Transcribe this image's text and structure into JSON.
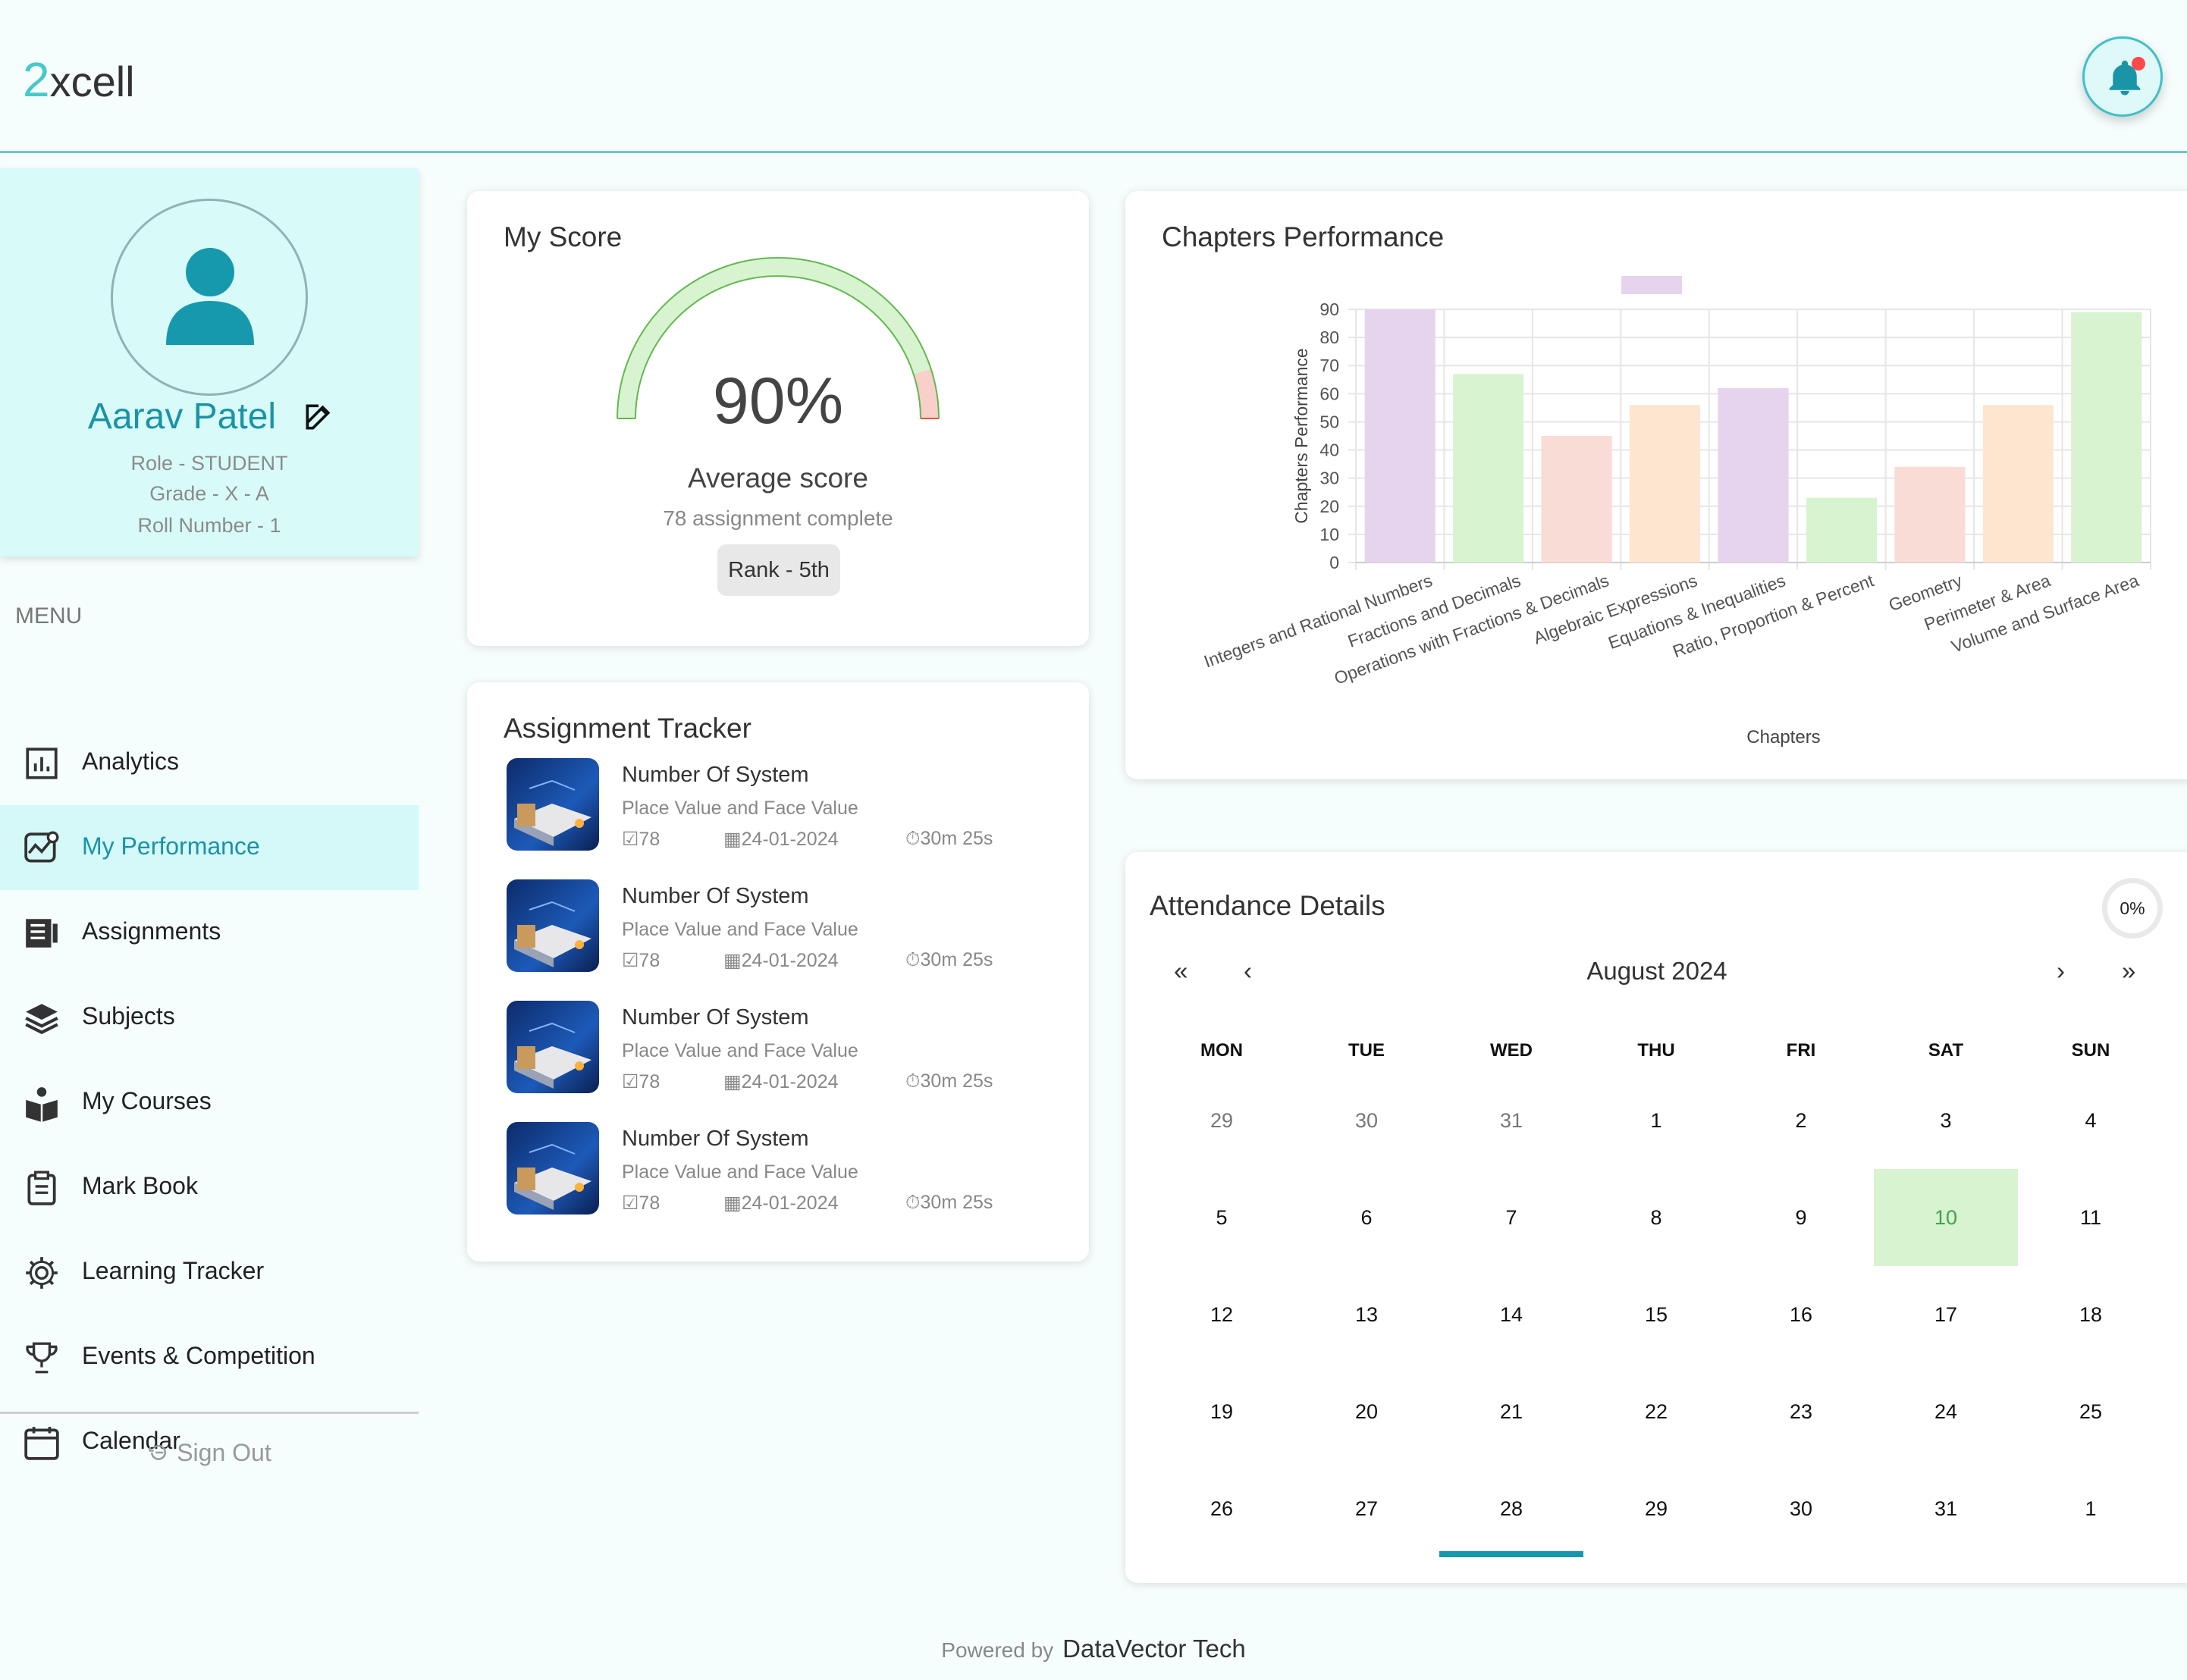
{
  "brand": {
    "logo_num": "2",
    "logo_text": "xcell"
  },
  "profile": {
    "name": "Aarav Patel",
    "role": "Role - STUDENT",
    "grade": "Grade - X - A",
    "roll": "Roll Number - 1"
  },
  "menu": {
    "label": "MENU",
    "items": [
      {
        "label": "Analytics",
        "icon": "analytics-icon"
      },
      {
        "label": "My Performance",
        "icon": "performance-icon"
      },
      {
        "label": "Assignments",
        "icon": "assignments-icon"
      },
      {
        "label": "Subjects",
        "icon": "subjects-icon"
      },
      {
        "label": "My Courses",
        "icon": "courses-icon"
      },
      {
        "label": "Mark Book",
        "icon": "clipboard-icon"
      },
      {
        "label": "Learning Tracker",
        "icon": "gear-icon"
      },
      {
        "label": "Events & Competition",
        "icon": "trophy-icon"
      },
      {
        "label": "Calendar",
        "icon": "calendar-icon"
      }
    ],
    "active_index": 1,
    "signout": "Sign Out"
  },
  "score": {
    "title": "My Score",
    "percentage": 90,
    "value_text": "90%",
    "avg_label": "Average score",
    "assignments": "78 assignment complete",
    "rank": "Rank - 5th"
  },
  "tracker": {
    "title": "Assignment Tracker",
    "items": [
      {
        "title": "Number Of System",
        "subtitle": "Place Value and Face Value",
        "count": "78",
        "date": "24-01-2024",
        "time": "30m 25s"
      },
      {
        "title": "Number Of System",
        "subtitle": "Place Value and Face Value",
        "count": "78",
        "date": "24-01-2024",
        "time": "30m 25s"
      },
      {
        "title": "Number Of System",
        "subtitle": "Place Value and Face Value",
        "count": "78",
        "date": "24-01-2024",
        "time": "30m 25s"
      },
      {
        "title": "Number Of System",
        "subtitle": "Place Value and Face Value",
        "count": "78",
        "date": "24-01-2024",
        "time": "30m 25s"
      }
    ]
  },
  "chart_data": {
    "type": "bar",
    "title": "Chapters Performance",
    "xlabel": "Chapters",
    "ylabel": "Chapters Performance",
    "ylim": [
      0,
      90
    ],
    "yticks": [
      0,
      10,
      20,
      30,
      40,
      50,
      60,
      70,
      80,
      90
    ],
    "categories": [
      "Integers and Rational Numbers",
      "Fractions and Decimals",
      "Operations with Fractions & Decimals",
      "Algebraic Expressions",
      "Equations & Inequalities",
      "Ratio, Proportion & Percent",
      "Geometry",
      "Perimeter & Area",
      "Volume and Surface Area"
    ],
    "values": [
      90,
      67,
      45,
      56,
      62,
      23,
      34,
      56,
      89
    ],
    "colors": [
      "#e6d4ef",
      "#d8f3d0",
      "#f9dcd5",
      "#fde6d0",
      "#e6d4ef",
      "#d8f3d0",
      "#f9dcd5",
      "#fde6d0",
      "#d8f3d0"
    ],
    "grid": true
  },
  "attendance": {
    "title": "Attendance Details",
    "percent": "0%",
    "month": "August 2024",
    "nav": {
      "first": "«",
      "prev": "‹",
      "next": "›",
      "last": "»"
    },
    "weekdays": [
      "MON",
      "TUE",
      "WED",
      "THU",
      "FRI",
      "SAT",
      "SUN"
    ],
    "days": [
      [
        "29",
        "30",
        "31",
        "1",
        "2",
        "3",
        "4"
      ],
      [
        "5",
        "6",
        "7",
        "8",
        "9",
        "10",
        "11"
      ],
      [
        "12",
        "13",
        "14",
        "15",
        "16",
        "17",
        "18"
      ],
      [
        "19",
        "20",
        "21",
        "22",
        "23",
        "24",
        "25"
      ],
      [
        "26",
        "27",
        "28",
        "29",
        "30",
        "31",
        "1"
      ]
    ],
    "muted": [
      "0-0",
      "0-1",
      "0-2"
    ],
    "today": "1-5",
    "selected": "4-2"
  },
  "footer": {
    "prefix": "Powered by",
    "company": "DataVector Tech"
  }
}
